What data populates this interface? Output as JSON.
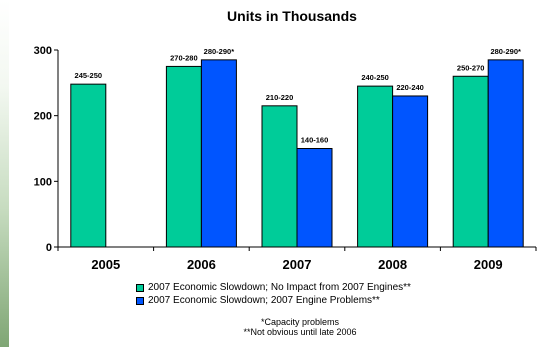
{
  "chart_data": {
    "type": "bar",
    "title": "Units in Thousands",
    "categories": [
      "2005",
      "2006",
      "2007",
      "2008",
      "2009"
    ],
    "ylim": [
      0,
      300
    ],
    "yticks": [
      0,
      100,
      200,
      300
    ],
    "grid": false,
    "legend_position": "bottom",
    "series": [
      {
        "name": "2007 Economic Slowdown; No Impact from 2007 Engines**",
        "color": "#00cc99",
        "values": [
          248,
          275,
          215,
          245,
          260
        ],
        "labels": [
          "245-250",
          "270-280",
          "210-220",
          "240-250",
          "250-270"
        ]
      },
      {
        "name": "2007 Economic Slowdown; 2007 Engine Problems**",
        "color": "#0055ff",
        "values": [
          null,
          285,
          150,
          230,
          285
        ],
        "labels": [
          "",
          "280-290*",
          "140-160",
          "220-240",
          "280-290*"
        ]
      }
    ]
  },
  "notes": [
    "*Capacity problems",
    "**Not obvious until late 2006"
  ]
}
